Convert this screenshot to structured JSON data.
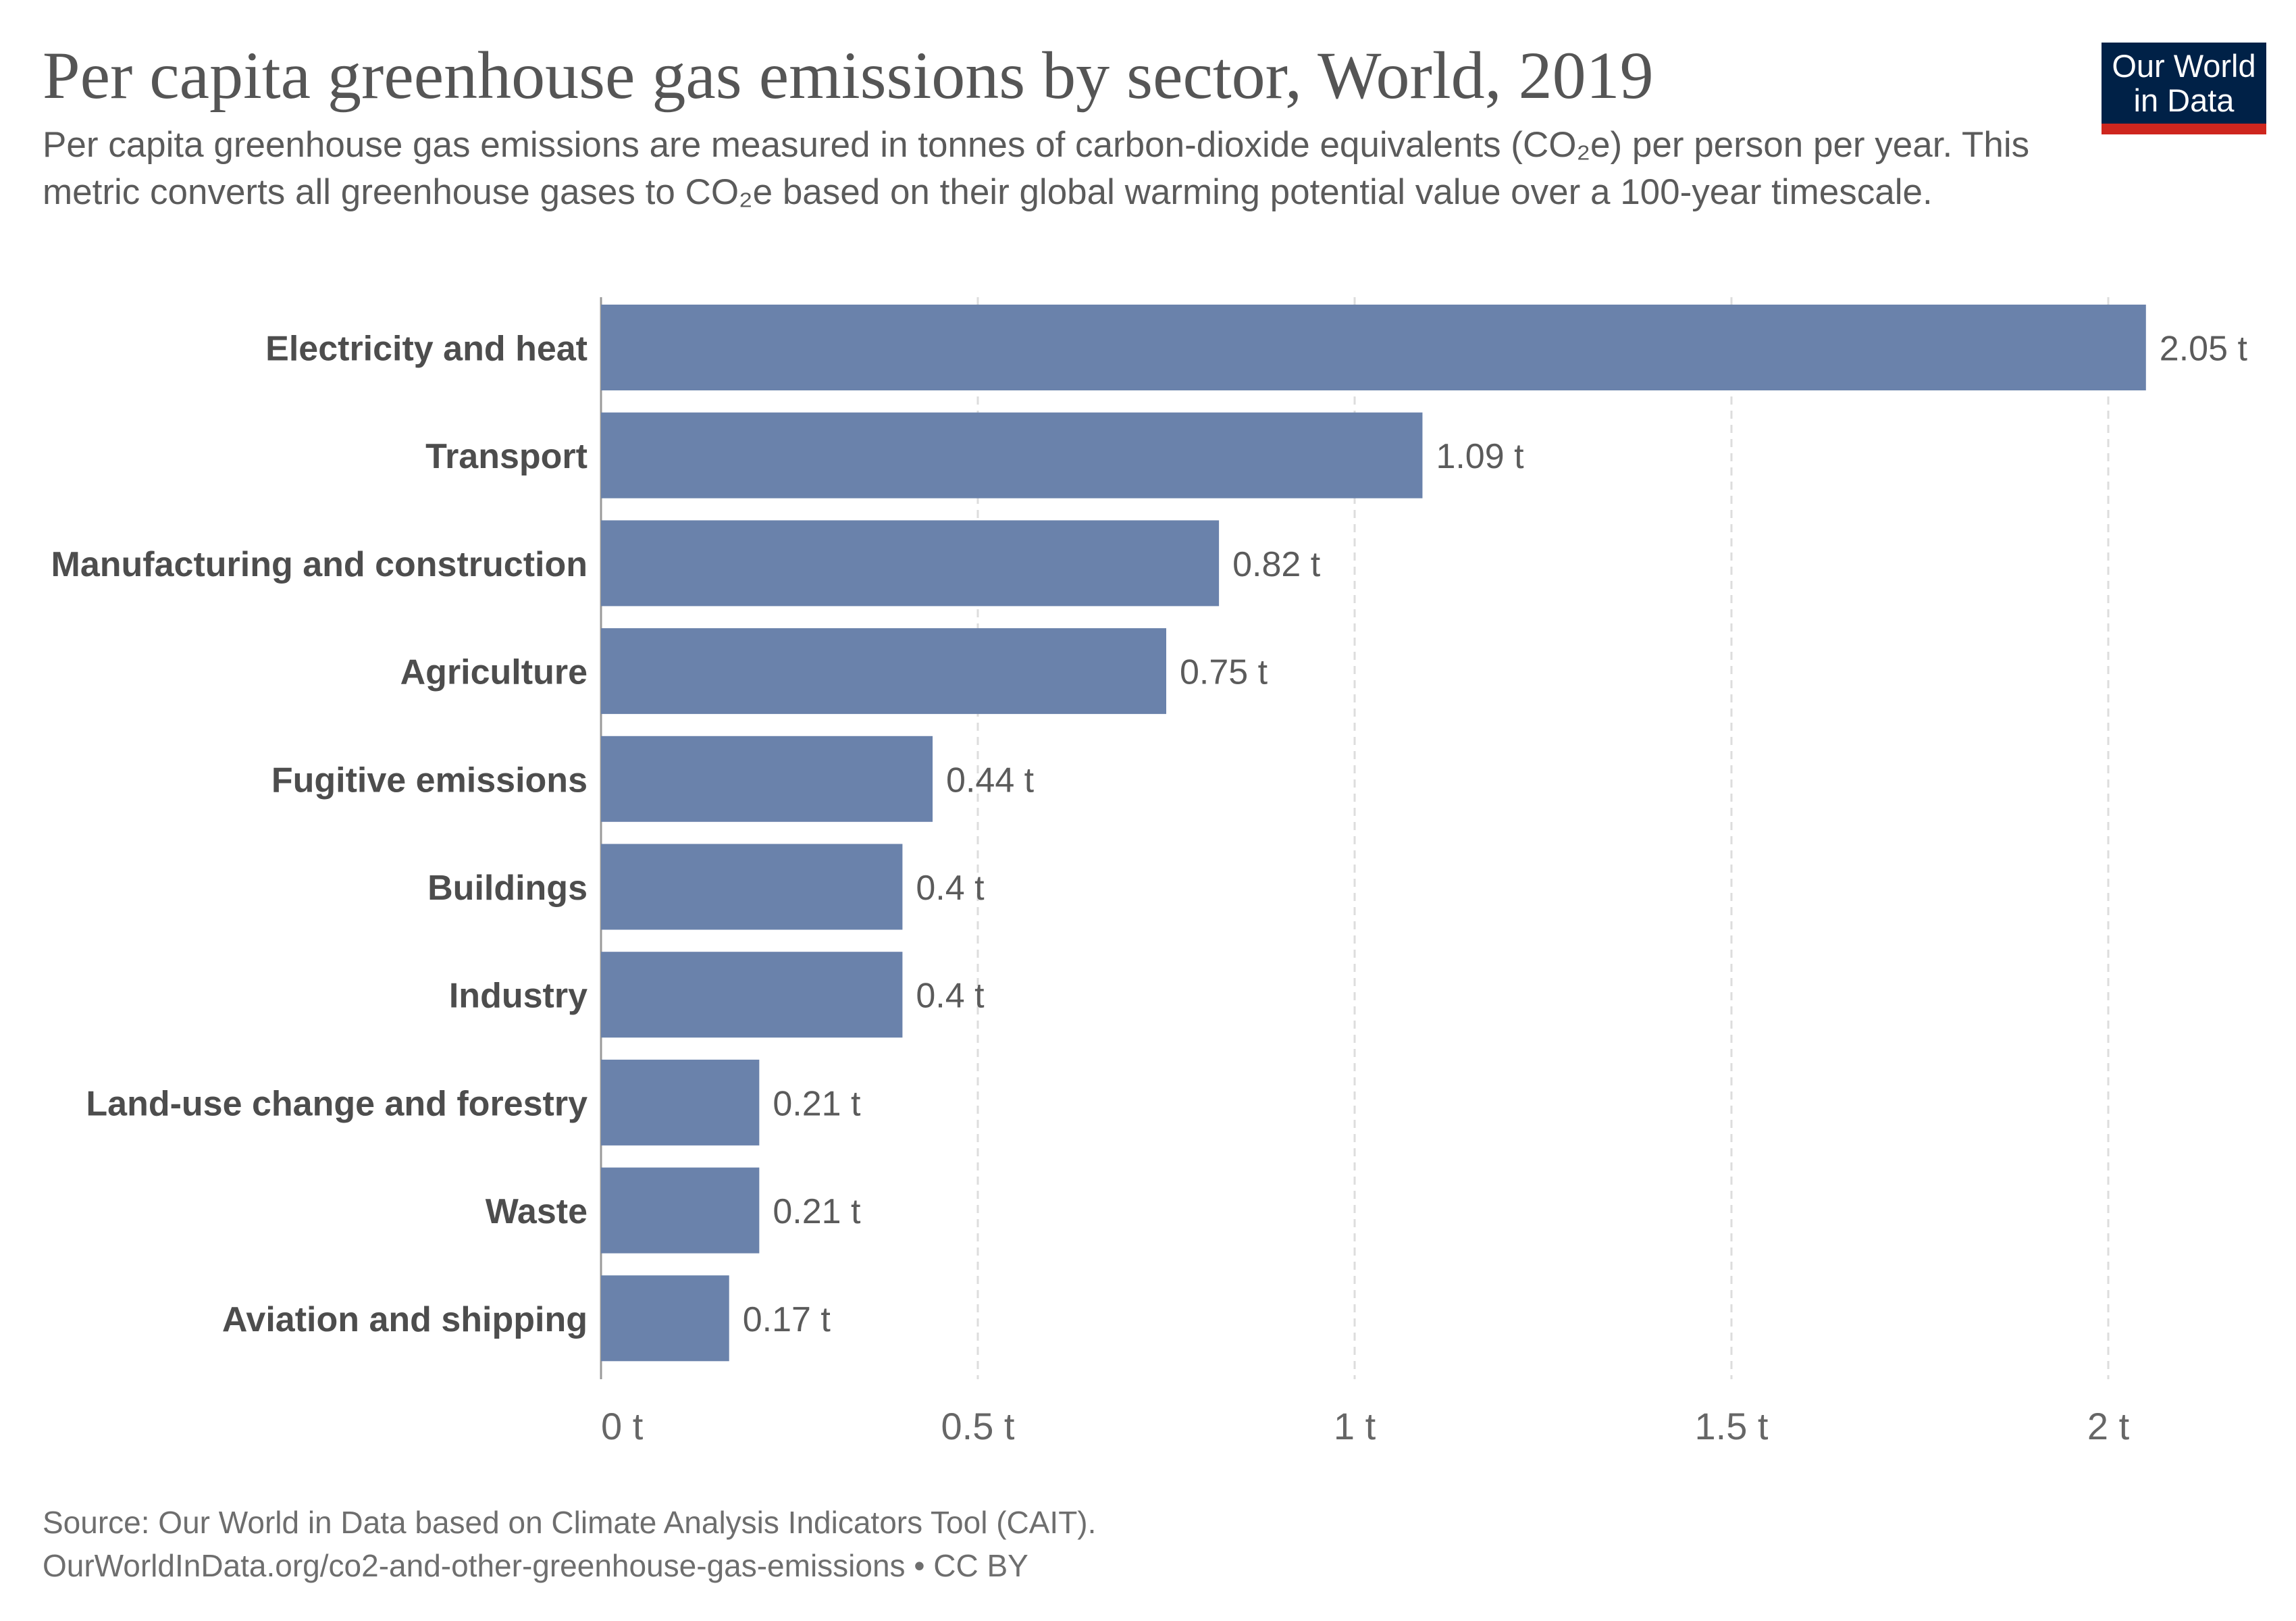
{
  "header": {
    "title": "Per capita greenhouse gas emissions by sector, World, 2019",
    "subtitle": "Per capita greenhouse gas emissions are measured in tonnes of carbon-dioxide equivalents (CO₂e) per person per year. This metric converts all greenhouse gases to CO₂e based on their global warming potential value over a 100-year timescale.",
    "logo_line1": "Our World",
    "logo_line2": "in Data"
  },
  "footer": {
    "source": "Source: Our World in Data based on Climate Analysis Indicators Tool (CAIT).",
    "url": "OurWorldInData.org/co2-and-other-greenhouse-gas-emissions • CC BY"
  },
  "colors": {
    "bar": "#6a82ab",
    "label": "#4d4d4d",
    "value_label": "#5b5b5b",
    "tick_label": "#666666",
    "gridline": "#dddddd",
    "axis": "#999999",
    "logo_bg": "#002147",
    "logo_accent": "#ce261e"
  },
  "chart_data": {
    "type": "bar",
    "orientation": "horizontal",
    "categories": [
      "Electricity and heat",
      "Transport",
      "Manufacturing and construction",
      "Agriculture",
      "Fugitive emissions",
      "Buildings",
      "Industry",
      "Land-use change and forestry",
      "Waste",
      "Aviation and shipping"
    ],
    "values": [
      2.05,
      1.09,
      0.82,
      0.75,
      0.44,
      0.4,
      0.4,
      0.21,
      0.21,
      0.17
    ],
    "value_labels": [
      "2.05 t",
      "1.09 t",
      "0.82 t",
      "0.75 t",
      "0.44 t",
      "0.4 t",
      "0.4 t",
      "0.21 t",
      "0.21 t",
      "0.17 t"
    ],
    "x_ticks": [
      0,
      0.5,
      1,
      1.5,
      2
    ],
    "x_tick_labels": [
      "0 t",
      "0.5 t",
      "1 t",
      "1.5 t",
      "2 t"
    ],
    "xlim": [
      0,
      2.05
    ],
    "grid": "vertical dashed",
    "legend": "none"
  }
}
